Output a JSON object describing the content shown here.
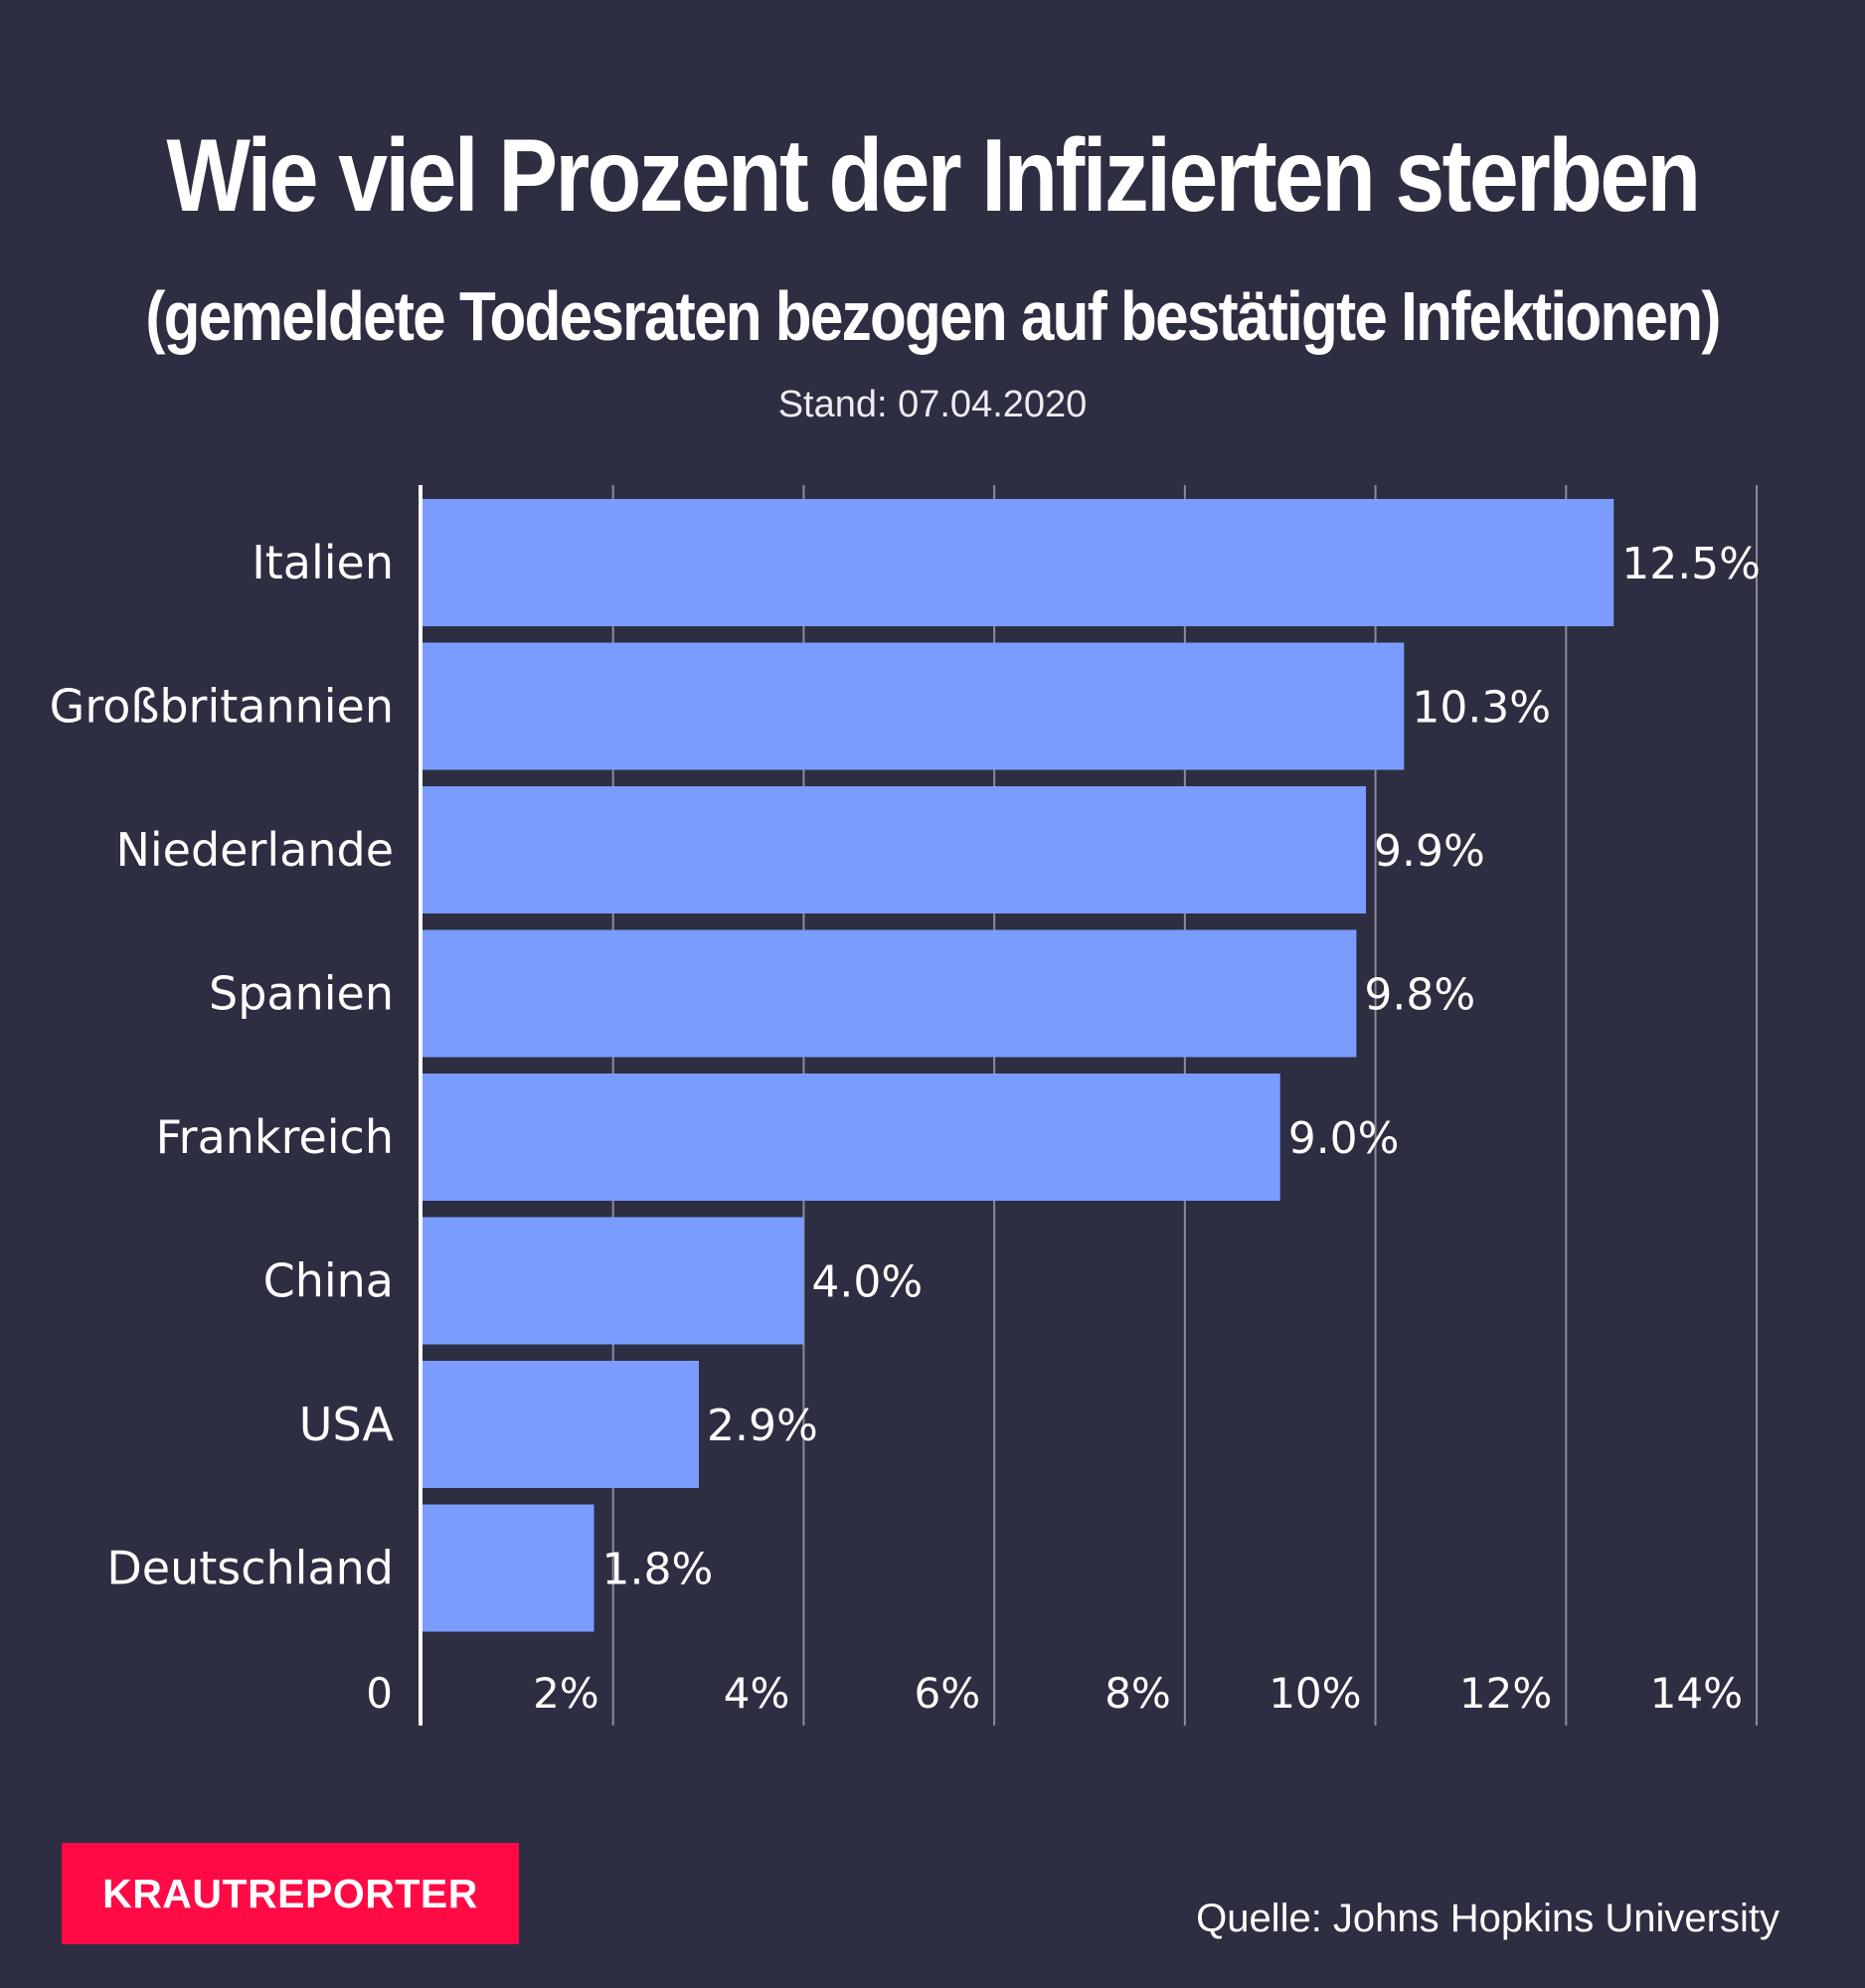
{
  "title": "Wie viel Prozent der Infizierten sterben",
  "subtitle": "(gemeldete Todesraten bezogen auf bestätigte Infektionen)",
  "date_line": "Stand: 07.04.2020",
  "brand": "KRAUTREPORTER",
  "source": "Quelle:  Johns Hopkins University",
  "colors": {
    "background": "#2e2e42",
    "bar": "#7b9cff",
    "grid": "#8a8a9a",
    "brand": "#ff0a45"
  },
  "chart_data": {
    "type": "bar",
    "orientation": "horizontal",
    "categories": [
      "Italien",
      "Großbritannien",
      "Niederlande",
      "Spanien",
      "Frankreich",
      "China",
      "USA",
      "Deutschland"
    ],
    "values": [
      12.5,
      10.3,
      9.9,
      9.8,
      9.0,
      4.0,
      2.9,
      1.8
    ],
    "value_labels": [
      "12.5%",
      "10.3%",
      "9.9%",
      "9.8%",
      "9.0%",
      "4.0%",
      "2.9%",
      "1.8%"
    ],
    "xlim": [
      0,
      14
    ],
    "xticks": [
      0,
      2,
      4,
      6,
      8,
      10,
      12,
      14
    ],
    "xtick_labels": [
      "0",
      "2%",
      "4%",
      "6%",
      "8%",
      "10%",
      "12%",
      "14%"
    ],
    "grid": true
  }
}
